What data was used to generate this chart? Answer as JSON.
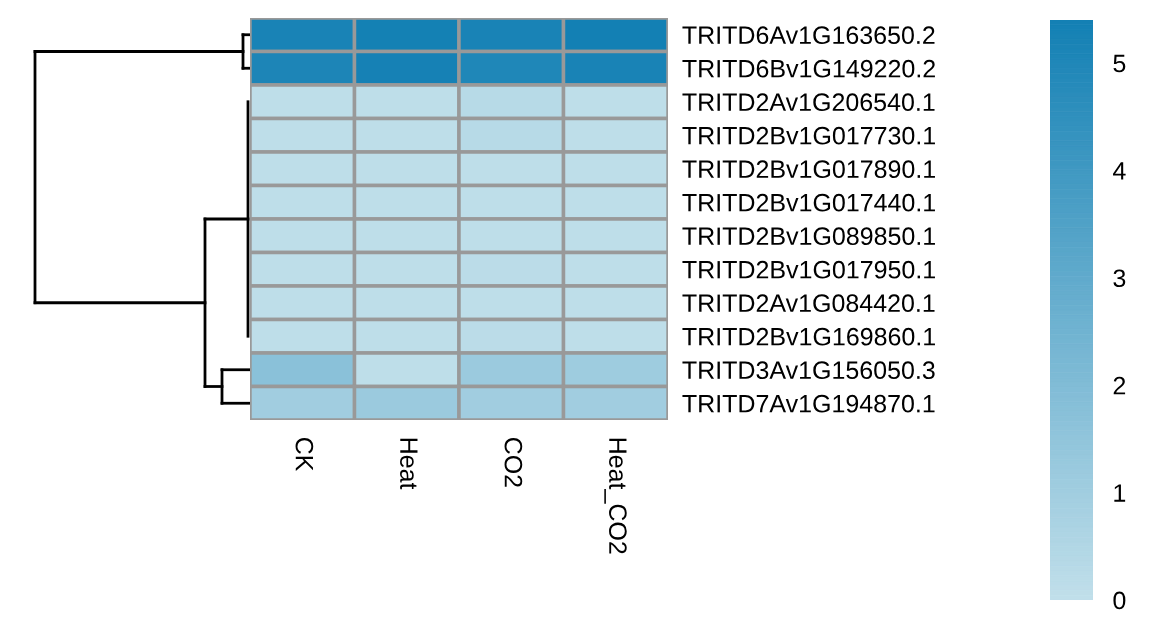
{
  "chart_data": {
    "type": "heatmap",
    "categories": [
      "CK",
      "Heat",
      "CO2",
      "Heat_CO2"
    ],
    "y_categories": [
      "TRITD6Av1G163650.2",
      "TRITD6Bv1G149220.2",
      "TRITD2Av1G206540.1",
      "TRITD2Bv1G017730.1",
      "TRITD2Bv1G017890.1",
      "TRITD2Bv1G017440.1",
      "TRITD2Bv1G089850.1",
      "TRITD2Bv1G017950.1",
      "TRITD2Av1G084420.1",
      "TRITD2Bv1G169860.1",
      "TRITD3Av1G156050.3",
      "TRITD7Av1G194870.1"
    ],
    "cells": [
      [
        5.2,
        5.35,
        5.2,
        5.4
      ],
      [
        5.1,
        5.3,
        5.0,
        5.2
      ],
      [
        0.1,
        0.1,
        0.3,
        0.1
      ],
      [
        0.1,
        0.1,
        0.3,
        0.1
      ],
      [
        0.1,
        0.1,
        0.1,
        0.1
      ],
      [
        0.1,
        0.1,
        0.1,
        0.1
      ],
      [
        0.1,
        0.1,
        0.1,
        0.1
      ],
      [
        0.1,
        0.1,
        0.2,
        0.1
      ],
      [
        0.1,
        0.1,
        0.1,
        0.1
      ],
      [
        0.1,
        0.1,
        0.2,
        0.1
      ],
      [
        1.7,
        0.1,
        1.2,
        1.1
      ],
      [
        1.0,
        1.2,
        1.0,
        1.0
      ]
    ],
    "clim": [
      0,
      5.4
    ],
    "cticks": [
      0,
      1,
      2,
      3,
      4,
      5
    ],
    "colors": [
      "#c1dfea",
      "#1380b4"
    ]
  }
}
